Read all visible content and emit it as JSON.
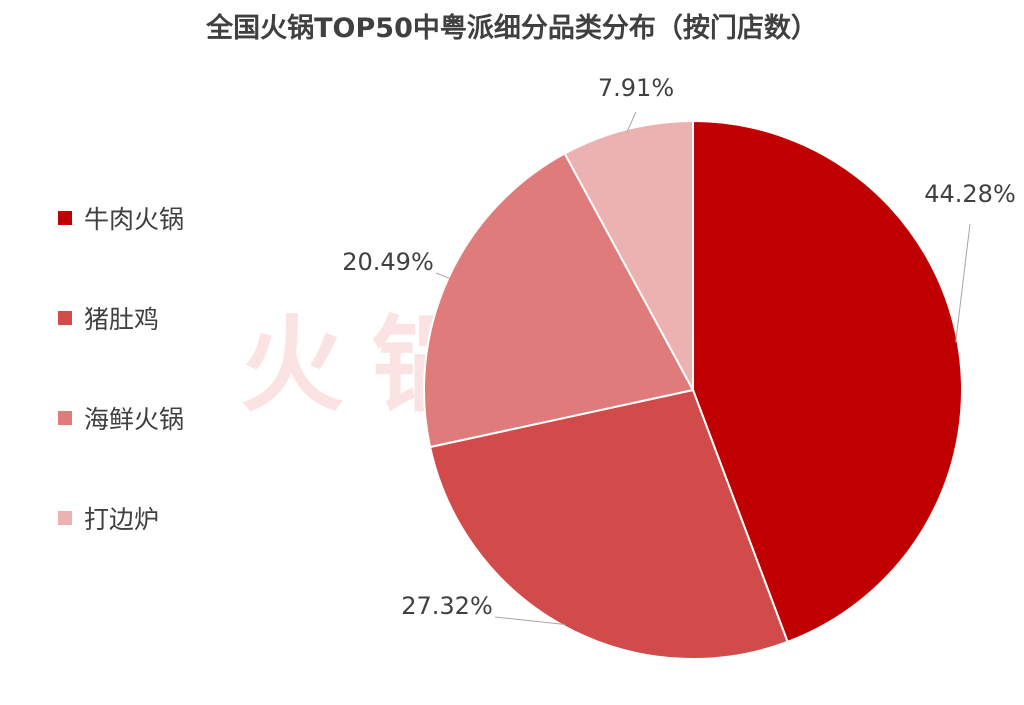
{
  "watermark": "火锅餐见",
  "colors": {
    "title": "#404040",
    "text": "#404040",
    "leader": "#a6a6a6",
    "slice_border": "#ffffff",
    "watermark": "#fbe3e3"
  },
  "chart_data": {
    "type": "pie",
    "title": "全国火锅TOP50中粤派细分品类分布（按门店数）",
    "categories": [
      "牛肉火锅",
      "猪肚鸡",
      "海鲜火锅",
      "打边炉"
    ],
    "values": [
      44.28,
      27.32,
      20.49,
      7.91
    ],
    "value_labels": [
      "44.28%",
      "27.32%",
      "20.49%",
      "7.91%"
    ],
    "colors": [
      "#c00000",
      "#d24b4b",
      "#e07b7b",
      "#ecb1b1"
    ],
    "start_angle_deg": 0,
    "direction": "clockwise",
    "legend_position": "left"
  }
}
